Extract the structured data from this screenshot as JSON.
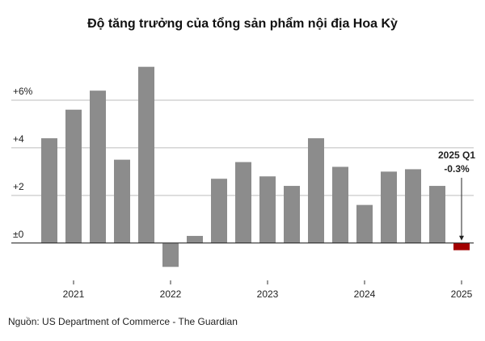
{
  "chart_data": {
    "type": "bar",
    "title": "Độ tăng trưởng của tổng sản phẩm nội địa Hoa Kỳ",
    "categories": [
      null,
      "2021",
      null,
      null,
      null,
      "2022",
      null,
      null,
      null,
      "2023",
      null,
      null,
      null,
      "2024",
      null,
      null,
      null,
      "2025"
    ],
    "values": [
      4.4,
      5.6,
      6.4,
      3.5,
      7.4,
      -1.0,
      0.3,
      2.7,
      3.4,
      2.8,
      2.4,
      4.4,
      3.2,
      1.6,
      3.0,
      3.1,
      2.4,
      -0.3
    ],
    "value_labels": [
      null,
      null,
      null,
      null,
      null,
      null,
      null,
      null,
      null,
      null,
      null,
      null,
      null,
      null,
      null,
      null,
      null,
      "-0.3%"
    ],
    "colors": [
      "#8c8c8c",
      "#8c8c8c",
      "#8c8c8c",
      "#8c8c8c",
      "#8c8c8c",
      "#8c8c8c",
      "#8c8c8c",
      "#8c8c8c",
      "#8c8c8c",
      "#8c8c8c",
      "#8c8c8c",
      "#8c8c8c",
      "#8c8c8c",
      "#8c8c8c",
      "#8c8c8c",
      "#8c8c8c",
      "#8c8c8c",
      "#a30000"
    ],
    "annotation": "2025 Q1",
    "ylim": [
      -1.5,
      8
    ],
    "yticks": [
      {
        "value": 0,
        "label": "±0"
      },
      {
        "value": 2,
        "label": "+2"
      },
      {
        "value": 4,
        "label": "+4"
      },
      {
        "value": 6,
        "label": "+6%"
      }
    ],
    "grid": true,
    "source": "Nguồn: US Department of Commerce - The Guardian"
  }
}
